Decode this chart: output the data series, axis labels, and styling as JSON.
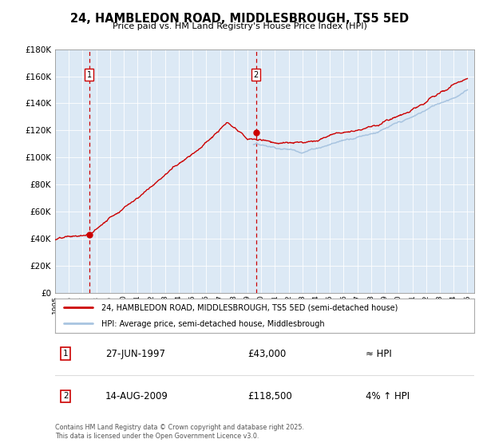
{
  "title": "24, HAMBLEDON ROAD, MIDDLESBROUGH, TS5 5ED",
  "subtitle": "Price paid vs. HM Land Registry's House Price Index (HPI)",
  "hpi_line_color": "#a8c4e0",
  "price_line_color": "#cc0000",
  "vline_color": "#cc0000",
  "plot_bg": "#dce9f5",
  "sale1_date": "27-JUN-1997",
  "sale1_price": 43000,
  "sale1_label": "£43,000",
  "sale1_hpi": "≈ HPI",
  "sale2_date": "14-AUG-2009",
  "sale2_price": 118500,
  "sale2_label": "£118,500",
  "sale2_hpi": "4% ↑ HPI",
  "legend_line1": "24, HAMBLEDON ROAD, MIDDLESBROUGH, TS5 5ED (semi-detached house)",
  "legend_line2": "HPI: Average price, semi-detached house, Middlesbrough",
  "footer": "Contains HM Land Registry data © Crown copyright and database right 2025.\nThis data is licensed under the Open Government Licence v3.0.",
  "sale1_x": 1997.49,
  "sale2_x": 2009.62,
  "ylim_max": 180000,
  "xlim_start": 1995,
  "xlim_end": 2025.5
}
